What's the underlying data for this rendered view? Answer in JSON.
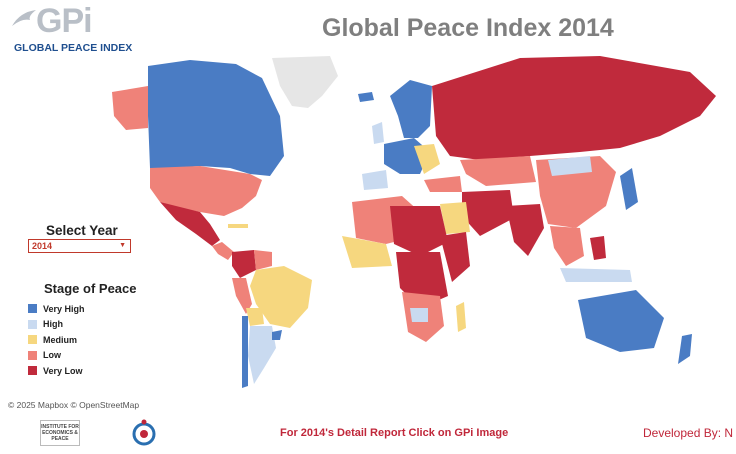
{
  "header": {
    "logo_text": "GPi",
    "logo_subtitle": "GLOBAL PEACE INDEX",
    "title": "Global Peace Index 2014"
  },
  "controls": {
    "select_year_label": "Select Year",
    "selected_year": "2014"
  },
  "legend": {
    "title": "Stage of Peace",
    "items": [
      {
        "label": "Very High",
        "color": "#4a7cc4"
      },
      {
        "label": "High",
        "color": "#c9daf0"
      },
      {
        "label": "Medium",
        "color": "#f6d77f"
      },
      {
        "label": "Low",
        "color": "#ef8279"
      },
      {
        "label": "Very Low",
        "color": "#c02a3c"
      }
    ]
  },
  "map": {
    "no_data_color": "#e6e6e6",
    "ocean_color": "#ffffff"
  },
  "footer": {
    "attribution": "© 2025 Mapbox © OpenStreetMap",
    "iep_logo_text": "INSTITUTE FOR ECONOMICS & PEACE",
    "report_link": "For 2014's Detail Report Click on GPi Image",
    "developed_by": "Developed By: N"
  }
}
